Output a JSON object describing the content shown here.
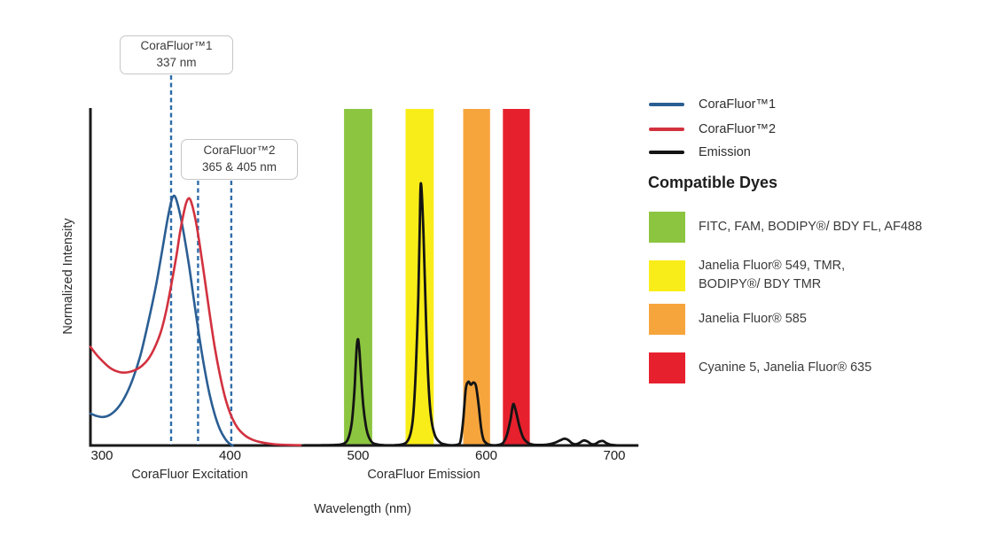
{
  "chart_data": {
    "type": "line",
    "xlabel": "Wavelength (nm)",
    "ylabel": "Normalized Intensity",
    "x_ticks": [
      300,
      400,
      500,
      600,
      700
    ],
    "xlim": [
      291,
      719
    ],
    "ylim": [
      0,
      1.35
    ],
    "grid": false,
    "axis_color": "#1a1a1a",
    "marker_color": "#2f6ca9",
    "axis_section_labels": [
      {
        "text": "CoraFluor Excitation",
        "center_nm": 369
      },
      {
        "text": "CoraFluor Emission",
        "center_nm": 551
      }
    ],
    "annotations": [
      {
        "line1": "CoraFluor™1",
        "line2": "337 nm",
        "lines_nm": [
          354
        ]
      },
      {
        "line1": "CoraFluor™2",
        "line2": "365 & 405 nm",
        "lines_nm": [
          375,
          401
        ]
      }
    ],
    "bands": [
      {
        "name": "green",
        "color": "#8CC540",
        "nm": [
          489,
          511
        ]
      },
      {
        "name": "yellow",
        "color": "#F9ED19",
        "nm": [
          537,
          559
        ]
      },
      {
        "name": "orange",
        "color": "#F6A53D",
        "nm": [
          582,
          603
        ]
      },
      {
        "name": "red",
        "color": "#E7202E",
        "nm": [
          613,
          634
        ]
      }
    ],
    "series": [
      {
        "key": "corafluor1-excitation",
        "name": "CoraFluor™1",
        "color": "#2A5E93",
        "width": 2.6,
        "points": [
          [
            291,
            0.128
          ],
          [
            296,
            0.118
          ],
          [
            301,
            0.114
          ],
          [
            306,
            0.122
          ],
          [
            312,
            0.148
          ],
          [
            318,
            0.195
          ],
          [
            324,
            0.265
          ],
          [
            330,
            0.36
          ],
          [
            336,
            0.49
          ],
          [
            342,
            0.635
          ],
          [
            347,
            0.78
          ],
          [
            351,
            0.9
          ],
          [
            354,
            0.975
          ],
          [
            356,
            1.0
          ],
          [
            358,
            0.985
          ],
          [
            361,
            0.925
          ],
          [
            364,
            0.845
          ],
          [
            368,
            0.72
          ],
          [
            372,
            0.575
          ],
          [
            376,
            0.435
          ],
          [
            380,
            0.31
          ],
          [
            384,
            0.205
          ],
          [
            388,
            0.125
          ],
          [
            392,
            0.066
          ],
          [
            396,
            0.028
          ],
          [
            399,
            0.01
          ],
          [
            402,
            0.0
          ]
        ]
      },
      {
        "key": "corafluor2-excitation",
        "name": "CoraFluor™2",
        "color": "#D2313F",
        "width": 2.6,
        "points": [
          [
            291,
            0.395
          ],
          [
            296,
            0.362
          ],
          [
            301,
            0.335
          ],
          [
            306,
            0.312
          ],
          [
            311,
            0.298
          ],
          [
            316,
            0.292
          ],
          [
            321,
            0.294
          ],
          [
            326,
            0.302
          ],
          [
            331,
            0.318
          ],
          [
            336,
            0.345
          ],
          [
            341,
            0.39
          ],
          [
            346,
            0.455
          ],
          [
            350,
            0.535
          ],
          [
            354,
            0.64
          ],
          [
            358,
            0.755
          ],
          [
            361,
            0.855
          ],
          [
            364,
            0.935
          ],
          [
            366,
            0.975
          ],
          [
            368,
            0.99
          ],
          [
            370,
            0.97
          ],
          [
            373,
            0.905
          ],
          [
            376,
            0.815
          ],
          [
            380,
            0.675
          ],
          [
            384,
            0.53
          ],
          [
            388,
            0.395
          ],
          [
            392,
            0.285
          ],
          [
            396,
            0.195
          ],
          [
            400,
            0.13
          ],
          [
            404,
            0.086
          ],
          [
            408,
            0.057
          ],
          [
            413,
            0.035
          ],
          [
            418,
            0.022
          ],
          [
            424,
            0.013
          ],
          [
            430,
            0.008
          ],
          [
            437,
            0.004
          ],
          [
            446,
            0.002
          ],
          [
            455,
            0.001
          ]
        ]
      },
      {
        "key": "emission",
        "name": "Emission",
        "color": "#141414",
        "width": 2.8,
        "points": [
          [
            458,
            0.001
          ],
          [
            470,
            0.001
          ],
          [
            482,
            0.002
          ],
          [
            488,
            0.006
          ],
          [
            492,
            0.025
          ],
          [
            495,
            0.09
          ],
          [
            497,
            0.21
          ],
          [
            498,
            0.31
          ],
          [
            499,
            0.4
          ],
          [
            500,
            0.425
          ],
          [
            501,
            0.38
          ],
          [
            502,
            0.3
          ],
          [
            504,
            0.16
          ],
          [
            506,
            0.08
          ],
          [
            508,
            0.038
          ],
          [
            511,
            0.012
          ],
          [
            515,
            0.004
          ],
          [
            521,
            0.001
          ],
          [
            528,
            0.001
          ],
          [
            534,
            0.004
          ],
          [
            538,
            0.014
          ],
          [
            541,
            0.05
          ],
          [
            543,
            0.12
          ],
          [
            545,
            0.3
          ],
          [
            547,
            0.6
          ],
          [
            548,
            0.85
          ],
          [
            549,
            1.05
          ],
          [
            551,
            0.85
          ],
          [
            553,
            0.5
          ],
          [
            555,
            0.24
          ],
          [
            557,
            0.11
          ],
          [
            560,
            0.04
          ],
          [
            564,
            0.012
          ],
          [
            568,
            0.004
          ],
          [
            573,
            0.001
          ],
          [
            578,
            0.004
          ],
          [
            580,
            0.02
          ],
          [
            582,
            0.1
          ],
          [
            584,
            0.225
          ],
          [
            586,
            0.255
          ],
          [
            588,
            0.243
          ],
          [
            590,
            0.252
          ],
          [
            592,
            0.238
          ],
          [
            594,
            0.165
          ],
          [
            596,
            0.07
          ],
          [
            598,
            0.022
          ],
          [
            601,
            0.006
          ],
          [
            605,
            0.001
          ],
          [
            609,
            0.002
          ],
          [
            613,
            0.01
          ],
          [
            616,
            0.04
          ],
          [
            619,
            0.105
          ],
          [
            621,
            0.165
          ],
          [
            623,
            0.14
          ],
          [
            626,
            0.075
          ],
          [
            629,
            0.03
          ],
          [
            633,
            0.009
          ],
          [
            637,
            0.003
          ],
          [
            642,
            0.002
          ],
          [
            648,
            0.004
          ],
          [
            653,
            0.01
          ],
          [
            658,
            0.021
          ],
          [
            661,
            0.027
          ],
          [
            664,
            0.022
          ],
          [
            667,
            0.009
          ],
          [
            670,
            0.005
          ],
          [
            673,
            0.011
          ],
          [
            676,
            0.02
          ],
          [
            679,
            0.016
          ],
          [
            682,
            0.006
          ],
          [
            685,
            0.006
          ],
          [
            688,
            0.015
          ],
          [
            691,
            0.018
          ],
          [
            694,
            0.009
          ],
          [
            697,
            0.003
          ],
          [
            701,
            0.001
          ],
          [
            708,
            0.0
          ],
          [
            718,
            0.0
          ]
        ]
      }
    ]
  },
  "legend": {
    "items": [
      {
        "label": "CoraFluor™1",
        "color": "#2A5E93"
      },
      {
        "label": "CoraFluor™2",
        "color": "#D2313F"
      },
      {
        "label": "Emission",
        "color": "#141414"
      }
    ]
  },
  "compatible_dyes": {
    "heading": "Compatible Dyes",
    "items": [
      {
        "color": "#8CC540",
        "label": "FITC, FAM, BODIPY®/ BDY FL, AF488"
      },
      {
        "color": "#F9ED19",
        "label": "Janelia Fluor® 549, TMR,\nBODIPY®/ BDY TMR"
      },
      {
        "color": "#F6A53D",
        "label": "Janelia Fluor® 585"
      },
      {
        "color": "#E7202E",
        "label": "Cyanine 5, Janelia Fluor® 635"
      }
    ]
  }
}
